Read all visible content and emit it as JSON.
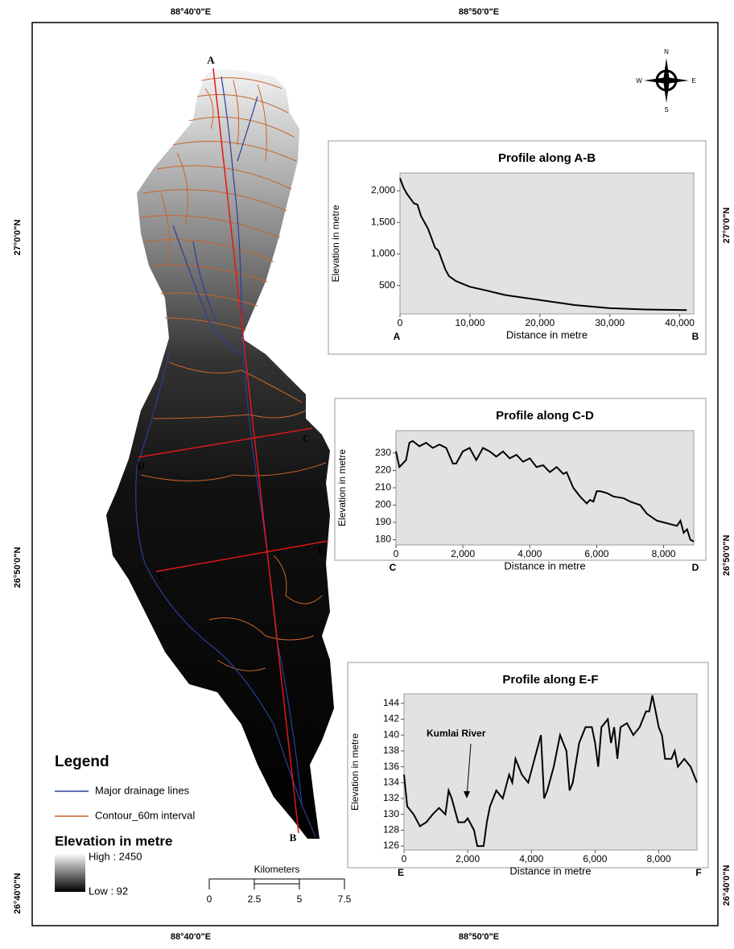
{
  "map": {
    "lon_labels": [
      "88°40'0\"E",
      "88°50'0\"E"
    ],
    "lat_labels": [
      "27°0'0\"N",
      "26°50'0\"N",
      "26°40'0\"N"
    ],
    "point_labels": [
      "A",
      "B",
      "C",
      "D",
      "E",
      "F"
    ],
    "compass": [
      "N",
      "S",
      "E",
      "W"
    ],
    "legend": {
      "title": "Legend",
      "drainage": "Major drainage lines",
      "contour": "Contour_60m interval",
      "elevation_title": "Elevation in metre",
      "high": "High : 2450",
      "low": "Low : 92"
    },
    "scale": {
      "title": "Kilometers",
      "ticks": [
        "0",
        "2.5",
        "5",
        "7.5"
      ]
    }
  },
  "chart_data": [
    {
      "type": "line",
      "title": "Profile along A-B",
      "xlabel": "Distance in metre",
      "ylabel": "Elevation in metre",
      "start_label": "A",
      "end_label": "B",
      "color": "#000000",
      "x": [
        0,
        500,
        1000,
        2000,
        2500,
        3000,
        4000,
        5000,
        5500,
        6000,
        6500,
        7000,
        8000,
        10000,
        12000,
        15000,
        20000,
        25000,
        30000,
        35000,
        41000
      ],
      "values": [
        2200,
        2050,
        1950,
        1800,
        1780,
        1600,
        1400,
        1100,
        1050,
        900,
        750,
        650,
        570,
        480,
        430,
        350,
        270,
        190,
        140,
        120,
        110
      ],
      "xlim": [
        0,
        42000
      ],
      "ylim": [
        50,
        2280
      ],
      "xticks": [
        0,
        {
          "value": 10000,
          "label": "10,000"
        },
        {
          "value": 20000,
          "label": "20,000"
        },
        {
          "value": 30000,
          "label": "30,000"
        },
        {
          "value": 40000,
          "label": "40,000"
        }
      ],
      "yticks": [
        500,
        {
          "value": 1000,
          "label": "1,000"
        },
        {
          "value": 1500,
          "label": "1,500"
        },
        {
          "value": 2000,
          "label": "2,000"
        }
      ]
    },
    {
      "type": "line",
      "title": "Profile along  C-D",
      "xlabel": "Distance in metre",
      "ylabel": "Elevation in metre",
      "start_label": "C",
      "end_label": "D",
      "color": "#000000",
      "x": [
        0,
        100,
        300,
        400,
        500,
        700,
        900,
        1100,
        1300,
        1500,
        1700,
        1800,
        2000,
        2200,
        2400,
        2600,
        2800,
        3000,
        3200,
        3400,
        3600,
        3800,
        4000,
        4200,
        4400,
        4600,
        4800,
        5000,
        5100,
        5300,
        5500,
        5700,
        5800,
        5900,
        6000,
        6100,
        6300,
        6500,
        6800,
        7000,
        7300,
        7500,
        7800,
        8000,
        8200,
        8400,
        8500,
        8600,
        8700,
        8800,
        8900
      ],
      "values": [
        231,
        222,
        226,
        236,
        237,
        234,
        236,
        233,
        235,
        233,
        224,
        224,
        231,
        233,
        226,
        233,
        231,
        228,
        231,
        227,
        229,
        225,
        227,
        222,
        223,
        219,
        222,
        218,
        219,
        210,
        205,
        201,
        203,
        202,
        208,
        208,
        207,
        205,
        204,
        202,
        200,
        195,
        191,
        190,
        189,
        188,
        191,
        184,
        186,
        180,
        179
      ],
      "xlim": [
        0,
        8900
      ],
      "ylim": [
        177,
        243
      ],
      "xticks": [
        0,
        {
          "value": 2000,
          "label": "2,000"
        },
        {
          "value": 4000,
          "label": "4,000"
        },
        {
          "value": 6000,
          "label": "6,000"
        },
        {
          "value": 8000,
          "label": "8,000"
        }
      ],
      "yticks": [
        180,
        190,
        200,
        210,
        220,
        230
      ]
    },
    {
      "type": "line",
      "title": "Profile along E-F",
      "xlabel": "Distance in metre",
      "ylabel": "Elevation in metre",
      "start_label": "E",
      "end_label": "F",
      "color": "#000000",
      "annotation": "Kumlai River",
      "x": [
        0,
        100,
        300,
        500,
        700,
        900,
        1100,
        1300,
        1400,
        1500,
        1700,
        1900,
        2000,
        2200,
        2300,
        2500,
        2600,
        2700,
        2900,
        3100,
        3300,
        3400,
        3500,
        3700,
        3900,
        4100,
        4300,
        4400,
        4500,
        4700,
        4900,
        5100,
        5200,
        5300,
        5500,
        5700,
        5900,
        6000,
        6100,
        6200,
        6400,
        6500,
        6600,
        6700,
        6800,
        7000,
        7200,
        7400,
        7600,
        7700,
        7800,
        7900,
        8000,
        8100,
        8200,
        8400,
        8500,
        8600,
        8800,
        9000,
        9100,
        9200
      ],
      "values": [
        135,
        131,
        130,
        128.5,
        129,
        130,
        130.8,
        130,
        133,
        132,
        129,
        129,
        129.5,
        128,
        126,
        126,
        129,
        131,
        133,
        132,
        135,
        134,
        137,
        135,
        134,
        137,
        140,
        132,
        133,
        136,
        140,
        138,
        133,
        134,
        139,
        141,
        141,
        139,
        136,
        141,
        142,
        139,
        141,
        137,
        141,
        141.5,
        140,
        141,
        143,
        143,
        145,
        143,
        141,
        140,
        137,
        137,
        138,
        136,
        137,
        136,
        135,
        134
      ],
      "xlim": [
        0,
        9200
      ],
      "ylim": [
        125.5,
        145.2
      ],
      "xticks": [
        0,
        {
          "value": 2000,
          "label": "2,000"
        },
        {
          "value": 4000,
          "label": "4,000"
        },
        {
          "value": 6000,
          "label": "6,000"
        },
        {
          "value": 8000,
          "label": "8,000"
        }
      ],
      "yticks": [
        126,
        128,
        130,
        132,
        134,
        136,
        138,
        140,
        142,
        144
      ]
    }
  ]
}
